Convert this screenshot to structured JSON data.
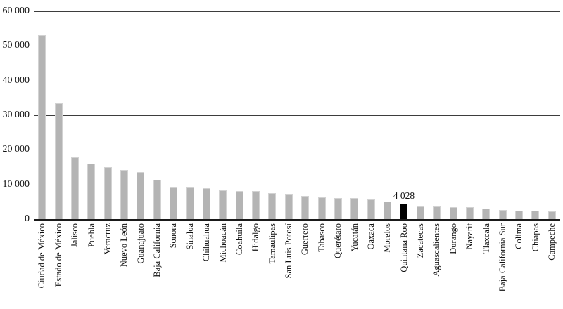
{
  "chart_data": {
    "type": "bar",
    "title": "",
    "xlabel": "",
    "ylabel": "",
    "ylim": [
      0,
      60000
    ],
    "ytick_interval": 10000,
    "yticks": [
      {
        "value": 60000,
        "label": "60 000"
      },
      {
        "value": 50000,
        "label": "50 000"
      },
      {
        "value": 40000,
        "label": "40 000"
      },
      {
        "value": 30000,
        "label": "30 000"
      },
      {
        "value": 20000,
        "label": "20 000"
      },
      {
        "value": 10000,
        "label": "10 000"
      },
      {
        "value": 0,
        "label": "0"
      }
    ],
    "grid": "horizontal",
    "legend": "none",
    "categories": [
      "Ciudad de México",
      "Estado de México",
      "Jalisco",
      "Puebla",
      "Veracruz",
      "Nuevo León",
      "Guanajuato",
      "Baja California",
      "Sonora",
      "Sinaloa",
      "Chihuahua",
      "Michoacán",
      "Coahuila",
      "Hidalgo",
      "Tamaulipas",
      "San Luis Potosí",
      "Guerrero",
      "Tabasco",
      "Querétaro",
      "Yucatán",
      "Oaxaca",
      "Morelos",
      "Quintana Roo",
      "Zacatecas",
      "Aguascalientes",
      "Durango",
      "Nayarit",
      "Tlaxcala",
      "Baja California Sur",
      "Colima",
      "Chiapas",
      "Campeche"
    ],
    "values": [
      53000,
      33300,
      17600,
      15900,
      14900,
      13900,
      13400,
      11100,
      9200,
      9100,
      8800,
      8100,
      7900,
      7850,
      7400,
      7000,
      6400,
      6000,
      5950,
      5850,
      5500,
      4800,
      4028,
      3450,
      3350,
      3250,
      3150,
      2850,
      2500,
      2300,
      2250,
      2100
    ],
    "highlight": {
      "category": "Quintana Roo",
      "index": 22,
      "annotation_text": "4 028",
      "color": "#000000"
    },
    "colors": {
      "bar_fill": "#b4b4b4",
      "bar_edge": "#d2d2d2",
      "highlight_fill": "#000000",
      "gridline": "#3d3d3d",
      "baseline": "#1a1a1a",
      "text": "#111111",
      "background": "#ffffff"
    }
  }
}
